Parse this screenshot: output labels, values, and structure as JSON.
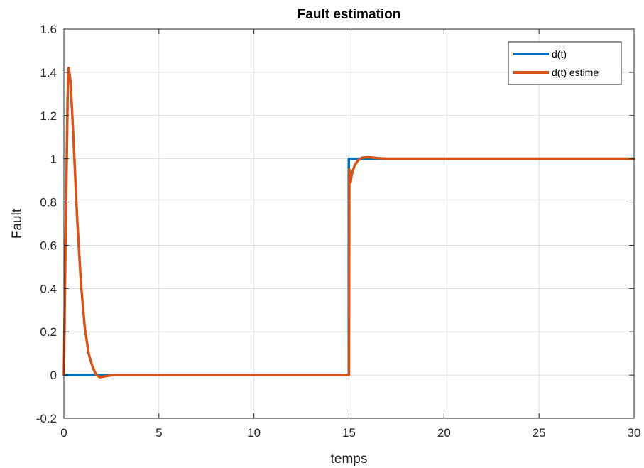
{
  "chart_data": {
    "type": "line",
    "title": "Fault estimation",
    "xlabel": "temps",
    "ylabel": "Fault",
    "xlim": [
      0,
      30
    ],
    "ylim": [
      -0.2,
      1.6
    ],
    "xticks": [
      "0",
      "5",
      "10",
      "15",
      "20",
      "25",
      "30"
    ],
    "yticks": [
      "-0.2",
      "0",
      "0.2",
      "0.4",
      "0.6",
      "0.8",
      "1",
      "1.2",
      "1.4",
      "1.6"
    ],
    "grid": true,
    "legend_position": "top-right",
    "series": [
      {
        "name": "d(t)",
        "color": "#0072BD",
        "x": [
          0,
          14.99,
          14.99,
          30
        ],
        "y": [
          0,
          0,
          1,
          1
        ]
      },
      {
        "name": "d(t) estime",
        "color": "#D95319",
        "x": [
          0,
          0.1,
          0.2,
          0.25,
          0.35,
          0.5,
          0.7,
          0.9,
          1.1,
          1.3,
          1.5,
          1.7,
          1.9,
          2.2,
          2.6,
          3.5,
          15.0,
          15.02,
          15.08,
          15.15,
          15.3,
          15.5,
          15.7,
          16.0,
          16.5,
          17.0,
          30
        ],
        "y": [
          0,
          0.7,
          1.3,
          1.42,
          1.36,
          1.1,
          0.72,
          0.42,
          0.22,
          0.1,
          0.04,
          0.0,
          -0.01,
          -0.005,
          0.0,
          0.0,
          0.0,
          0.95,
          0.89,
          0.93,
          0.97,
          0.995,
          1.005,
          1.008,
          1.003,
          1.0,
          1.0
        ]
      }
    ]
  }
}
